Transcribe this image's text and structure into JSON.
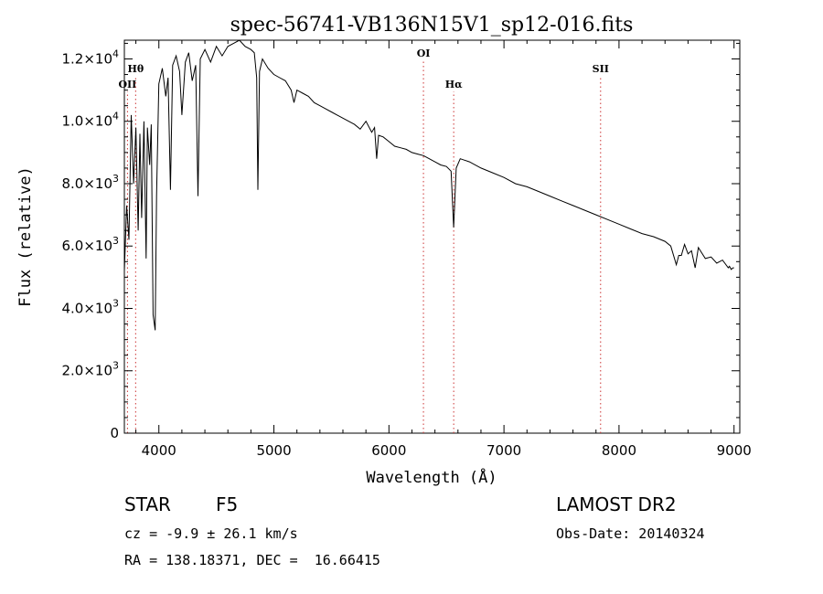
{
  "chart_data": {
    "type": "line",
    "title": "spec-56741-VB136N15V1_sp12-016.fits",
    "xlabel": "Wavelength (Å)",
    "ylabel": "Flux (relative)",
    "xlim": [
      3700,
      9050
    ],
    "ylim": [
      0,
      12600
    ],
    "xticks": [
      4000,
      5000,
      6000,
      7000,
      8000,
      9000
    ],
    "xtick_labels": [
      "4000",
      "5000",
      "6000",
      "7000",
      "8000",
      "9000"
    ],
    "yticks": [
      0,
      2000,
      4000,
      6000,
      8000,
      10000,
      12000
    ],
    "ytick_labels": [
      {
        "mantissa": "0",
        "exp": ""
      },
      {
        "mantissa": "2.0×10",
        "exp": "3"
      },
      {
        "mantissa": "4.0×10",
        "exp": "3"
      },
      {
        "mantissa": "6.0×10",
        "exp": "3"
      },
      {
        "mantissa": "8.0×10",
        "exp": "3"
      },
      {
        "mantissa": "1.0×10",
        "exp": "4"
      },
      {
        "mantissa": "1.2×10",
        "exp": "4"
      }
    ],
    "series": [
      {
        "name": "spectrum",
        "x": [
          3700,
          3720,
          3740,
          3760,
          3780,
          3800,
          3820,
          3835,
          3850,
          3870,
          3889,
          3900,
          3920,
          3934,
          3950,
          3968,
          3980,
          4000,
          4030,
          4060,
          4080,
          4101,
          4120,
          4150,
          4180,
          4200,
          4230,
          4260,
          4290,
          4320,
          4340,
          4360,
          4400,
          4450,
          4500,
          4550,
          4600,
          4650,
          4700,
          4750,
          4800,
          4830,
          4850,
          4861,
          4875,
          4900,
          4950,
          5000,
          5050,
          5100,
          5150,
          5175,
          5200,
          5250,
          5300,
          5350,
          5400,
          5450,
          5500,
          5550,
          5600,
          5650,
          5700,
          5750,
          5800,
          5850,
          5875,
          5893,
          5910,
          5950,
          6000,
          6050,
          6100,
          6150,
          6200,
          6250,
          6300,
          6350,
          6400,
          6450,
          6500,
          6540,
          6563,
          6585,
          6620,
          6700,
          6800,
          6900,
          7000,
          7100,
          7200,
          7300,
          7400,
          7500,
          7600,
          7700,
          7800,
          7900,
          8000,
          8100,
          8200,
          8300,
          8400,
          8450,
          8498,
          8520,
          8542,
          8570,
          8600,
          8630,
          8662,
          8690,
          8750,
          8800,
          8850,
          8900,
          8950,
          8960,
          8975,
          8990,
          9000
        ],
        "y": [
          5200,
          7300,
          6200,
          10200,
          8000,
          9800,
          6500,
          9600,
          6900,
          10000,
          5600,
          9800,
          8600,
          9900,
          3800,
          3300,
          7600,
          11200,
          11700,
          10800,
          11400,
          7800,
          11800,
          12100,
          11600,
          10200,
          11900,
          12200,
          11300,
          11800,
          7600,
          12000,
          12300,
          11900,
          12400,
          12100,
          12400,
          12500,
          12600,
          12400,
          12300,
          12200,
          11400,
          7800,
          11600,
          12000,
          11700,
          11500,
          11400,
          11300,
          11000,
          10600,
          11000,
          10900,
          10800,
          10600,
          10500,
          10400,
          10300,
          10200,
          10100,
          10000,
          9900,
          9750,
          10000,
          9650,
          9800,
          8800,
          9550,
          9500,
          9350,
          9200,
          9150,
          9100,
          9000,
          8950,
          8900,
          8800,
          8700,
          8600,
          8550,
          8400,
          6600,
          8500,
          8800,
          8700,
          8500,
          8350,
          8200,
          8000,
          7900,
          7750,
          7600,
          7450,
          7300,
          7150,
          7000,
          6850,
          6700,
          6550,
          6400,
          6300,
          6150,
          6000,
          5400,
          5700,
          5700,
          6050,
          5750,
          5850,
          5300,
          5950,
          5600,
          5650,
          5450,
          5550,
          5300,
          5350,
          5250,
          5300,
          5300
        ]
      }
    ],
    "line_markers": [
      {
        "label": "OII",
        "x": 3727,
        "label_row": "low"
      },
      {
        "label": "Hθ",
        "x": 3798,
        "label_row": "mid"
      },
      {
        "label": "OI",
        "x": 6300,
        "label_row": "high"
      },
      {
        "label": "Hα",
        "x": 6563,
        "label_row": "low"
      },
      {
        "label": "SII",
        "x": 7840,
        "label_row": "mid"
      }
    ],
    "colors": {
      "spectrum": "#000000",
      "markers": "#cc3333",
      "axes": "#000000"
    }
  },
  "info": {
    "class": "STAR",
    "subclass": "F5",
    "survey": "LAMOST DR2",
    "cz": "cz = -9.9 ± 26.1 km/s",
    "obs_date": "Obs-Date: 20140324",
    "coords": "RA = 138.18371, DEC =  16.66415"
  }
}
